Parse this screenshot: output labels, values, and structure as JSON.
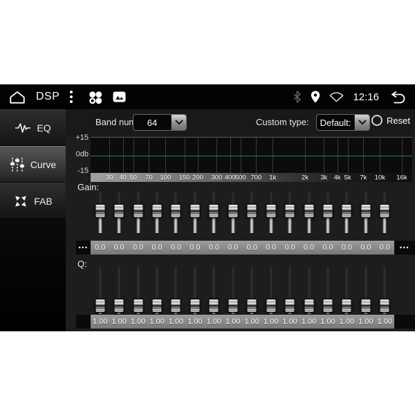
{
  "colors": {
    "zero_line": "#2f7084",
    "statusbar_bg": "#030303",
    "content_bg": "#1d1d1d",
    "values_bar_bg": "#8d8d8d"
  },
  "status_bar": {
    "title": "DSP",
    "time": "12:16",
    "icons": [
      "home-icon",
      "overflow-menu-icon",
      "apps-clover-icon",
      "gallery-icon",
      "bluetooth-icon",
      "location-icon",
      "wifi-icon",
      "back-icon"
    ]
  },
  "sidebar": {
    "items": [
      {
        "label": "EQ",
        "icon": "waveform-icon",
        "selected": false
      },
      {
        "label": "Curve",
        "icon": "faders-icon",
        "selected": true
      },
      {
        "label": "FAB",
        "icon": "collapse-arrows-icon",
        "selected": false
      }
    ]
  },
  "controls": {
    "band_num": {
      "label": "Band num:",
      "value": "64"
    },
    "custom_type": {
      "label": "Custom type:",
      "value": "Default:"
    },
    "reset_label": "Reset"
  },
  "graph": {
    "y_axis_labels": [
      "+15",
      "0db",
      "-15"
    ],
    "hz_min": 20,
    "hz_max": 20000,
    "curve_flat_db": 0,
    "freq_ticks": [
      {
        "label": "30",
        "hz": 30
      },
      {
        "label": "40",
        "hz": 40
      },
      {
        "label": "50",
        "hz": 50
      },
      {
        "label": "70",
        "hz": 70
      },
      {
        "label": "100",
        "hz": 100
      },
      {
        "label": "150",
        "hz": 150
      },
      {
        "label": "200",
        "hz": 200
      },
      {
        "label": "300",
        "hz": 300
      },
      {
        "label": "400",
        "hz": 400
      },
      {
        "label": "500",
        "hz": 500
      },
      {
        "label": "700",
        "hz": 700
      },
      {
        "label": "1k",
        "hz": 1000
      },
      {
        "label": "2k",
        "hz": 2000
      },
      {
        "label": "3k",
        "hz": 3000
      },
      {
        "label": "4k",
        "hz": 4000
      },
      {
        "label": "5k",
        "hz": 5000
      },
      {
        "label": "7k",
        "hz": 7000
      },
      {
        "label": "10k",
        "hz": 10000
      },
      {
        "label": "16k",
        "hz": 16000
      }
    ]
  },
  "gain": {
    "label": "Gain:",
    "values": [
      "0.0",
      "0.0",
      "0.0",
      "0.0",
      "0.0",
      "0.0",
      "0.0",
      "0.0",
      "0.0",
      "0.0",
      "0.0",
      "0.0",
      "0.0",
      "0.0",
      "0.0",
      "0.0"
    ],
    "handle_top_pct": 30,
    "more_left": "•••",
    "more_right": "•••"
  },
  "q": {
    "label": "Q:",
    "values": [
      "1.00",
      "1.00",
      "1.00",
      "1.00",
      "1.00",
      "1.00",
      "1.00",
      "1.00",
      "1.00",
      "1.00",
      "1.00",
      "1.00",
      "1.00",
      "1.00",
      "1.00",
      "1.00"
    ],
    "handle_top_pct": 68
  }
}
